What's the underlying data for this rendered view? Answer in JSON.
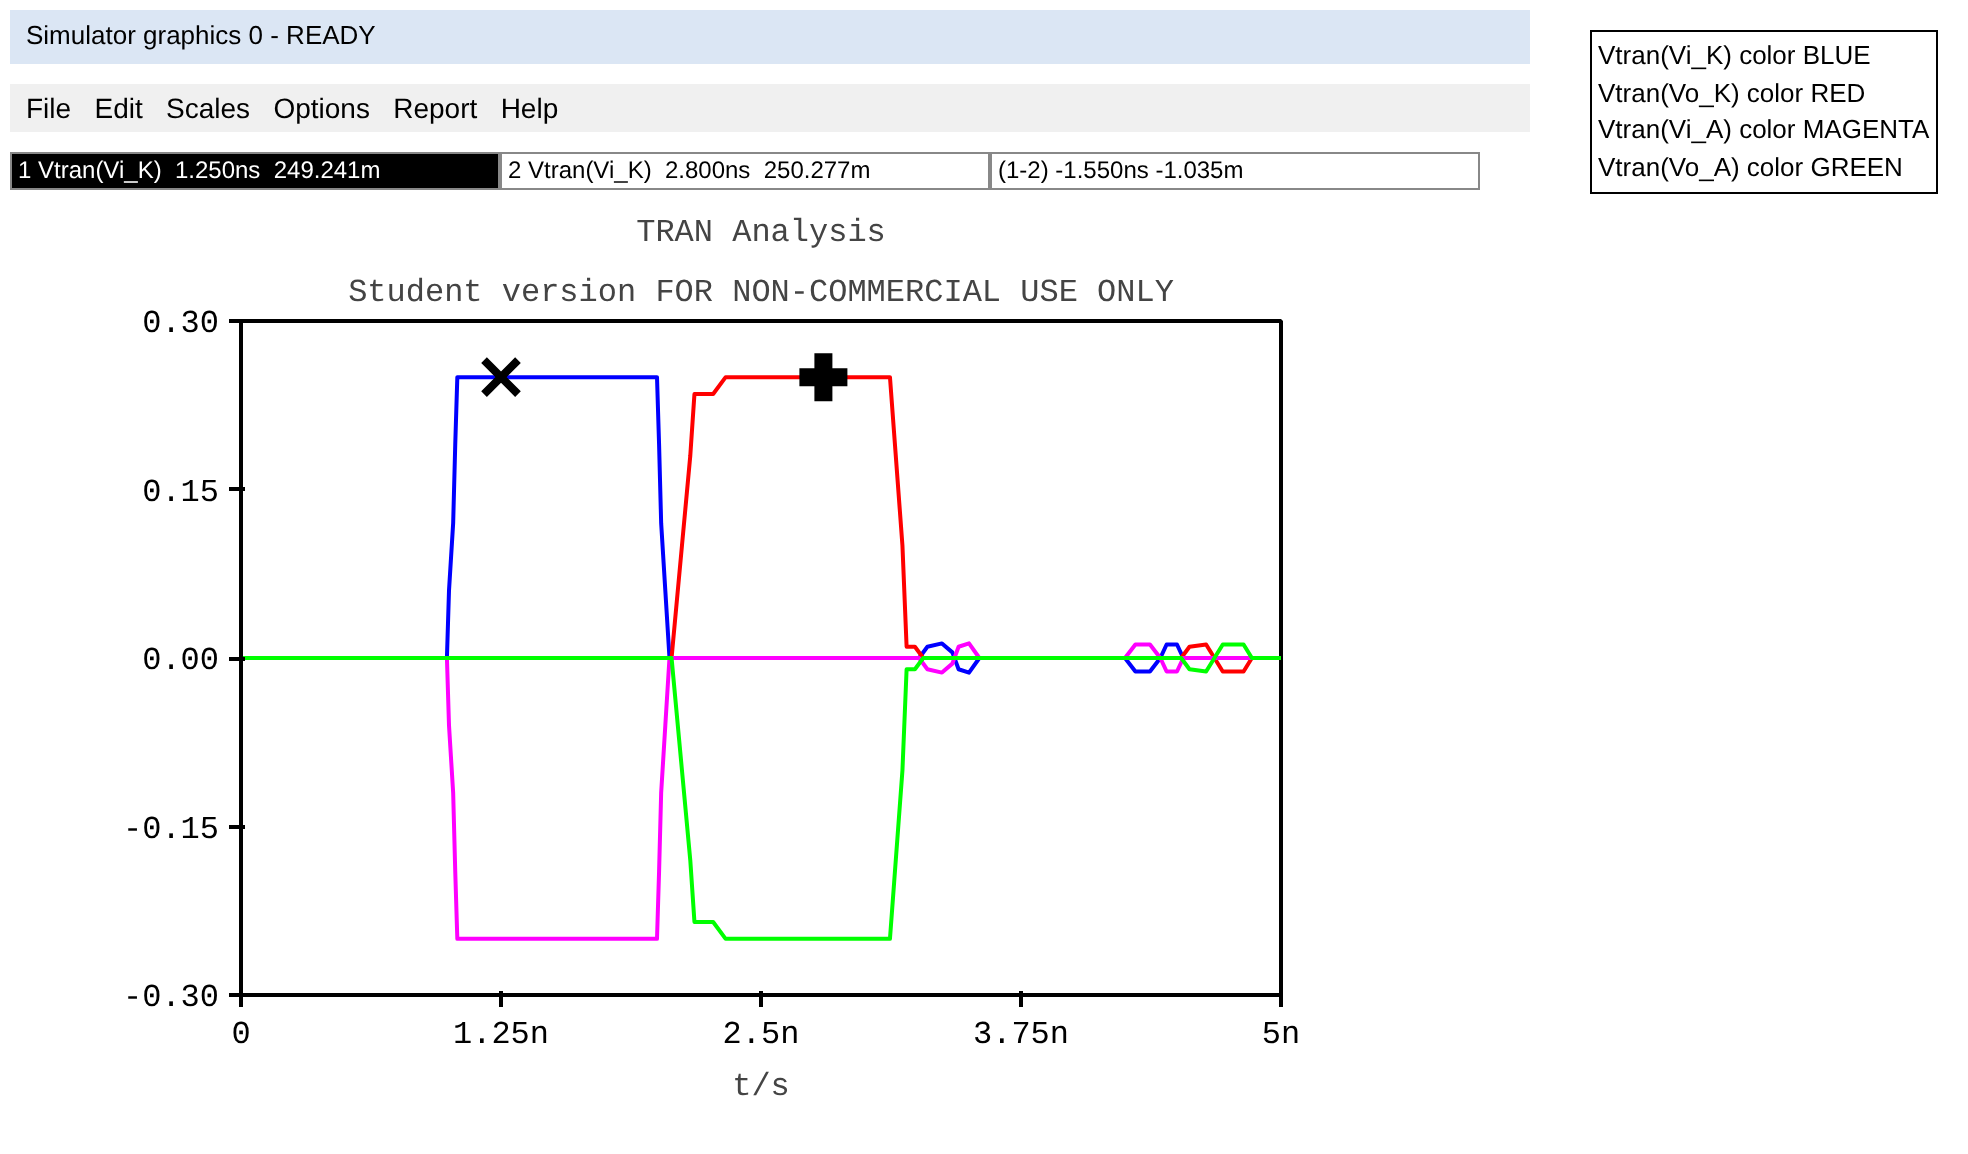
{
  "chart_data": {
    "type": "line",
    "title": "TRAN Analysis",
    "subtitle": "Student version FOR NON-COMMERCIAL USE ONLY",
    "xlabel": "t/s",
    "xlim": [
      0,
      5
    ],
    "ylim": [
      -0.3,
      0.3
    ],
    "xticks": [
      0,
      {
        "value": 1.25,
        "label": "1.25n"
      },
      {
        "value": 2.5,
        "label": "2.5n"
      },
      {
        "value": 3.75,
        "label": "3.75n"
      },
      {
        "value": 5,
        "label": "5n"
      }
    ],
    "yticks": [
      {
        "value": 0.3,
        "label": "0.30"
      },
      {
        "value": 0.15,
        "label": "0.15"
      },
      {
        "value": 0,
        "label": "0.00"
      },
      {
        "value": -0.15,
        "label": "-0.15"
      },
      {
        "value": -0.3,
        "label": "-0.30"
      }
    ],
    "grid": false,
    "line_style": "solid",
    "marker": "none",
    "series": [
      {
        "color": "#0000ff",
        "x": [
          0,
          0.99,
          1.0,
          1.02,
          1.03,
          1.04,
          2.0,
          2.01,
          2.02,
          2.04,
          2.06,
          3.26,
          3.3,
          3.37,
          3.42,
          3.45,
          3.5,
          3.55,
          4.25,
          4.3,
          4.37,
          4.42,
          4.45,
          4.5,
          4.53,
          5
        ],
        "values": [
          0,
          0,
          0.06,
          0.12,
          0.19,
          0.25,
          0.25,
          0.19,
          0.12,
          0.06,
          0,
          0,
          0.01,
          0.013,
          0.005,
          -0.01,
          -0.013,
          0,
          0,
          -0.012,
          -0.012,
          0,
          0.012,
          0.012,
          0,
          0
        ]
      },
      {
        "color": "#ff0000",
        "x": [
          0,
          2.07,
          2.12,
          2.16,
          2.18,
          2.27,
          2.33,
          3.12,
          3.14,
          3.18,
          3.2,
          3.24,
          3.28,
          4.52,
          4.56,
          4.64,
          4.68,
          4.72,
          4.82,
          4.86
        ],
        "values": [
          0,
          0,
          0.1,
          0.18,
          0.235,
          0.235,
          0.25,
          0.25,
          0.2,
          0.1,
          0.01,
          0.01,
          0,
          0,
          0.01,
          0.012,
          0,
          -0.012,
          -0.012,
          0
        ]
      },
      {
        "color": "#ff00ff",
        "x": [
          0,
          0.99,
          1.0,
          1.02,
          1.03,
          1.04,
          2.0,
          2.01,
          2.02,
          2.04,
          2.06,
          3.26,
          3.3,
          3.37,
          3.42,
          3.45,
          3.5,
          3.55,
          4.25,
          4.3,
          4.37,
          4.42,
          4.45,
          4.5,
          4.53,
          5
        ],
        "values": [
          0,
          0,
          -0.06,
          -0.12,
          -0.19,
          -0.25,
          -0.25,
          -0.19,
          -0.12,
          -0.06,
          0,
          0,
          -0.01,
          -0.013,
          -0.005,
          0.01,
          0.013,
          0,
          0,
          0.012,
          0.012,
          0,
          -0.012,
          -0.012,
          0,
          0
        ]
      },
      {
        "color": "#00ff00",
        "x": [
          0,
          2.07,
          2.12,
          2.16,
          2.18,
          2.27,
          2.33,
          3.12,
          3.14,
          3.18,
          3.2,
          3.24,
          3.28,
          4.52,
          4.56,
          4.64,
          4.68,
          4.72,
          4.82,
          4.86,
          5
        ],
        "values": [
          0,
          0,
          -0.1,
          -0.18,
          -0.235,
          -0.235,
          -0.25,
          -0.25,
          -0.2,
          -0.1,
          -0.01,
          -0.01,
          0,
          0,
          -0.01,
          -0.012,
          0,
          0.012,
          0.012,
          0,
          0
        ]
      },
      {
        "type": "scatter",
        "marker": "x",
        "color": "#000000",
        "x": [
          1.25
        ],
        "values": [
          0.25
        ]
      },
      {
        "type": "scatter",
        "marker": "cross",
        "color": "#000000",
        "x": [
          2.8
        ],
        "values": [
          0.25
        ]
      }
    ],
    "annotations": [
      "Simulator graphics 0 - READY",
      "File   Edit   Scales   Options   Report   Help",
      "1 Vtran(Vi_K)  1.250ns  249.241m",
      "2 Vtran(Vi_K)  2.800ns  250.277m",
      "(1-2) -1.550ns -1.035m",
      "Vtran(Vi_K) color BLUE",
      "Vtran(Vo_K) color RED",
      "Vtran(Vi_A) color MAGENTA",
      "Vtran(Vo_A) color GREEN"
    ]
  }
}
